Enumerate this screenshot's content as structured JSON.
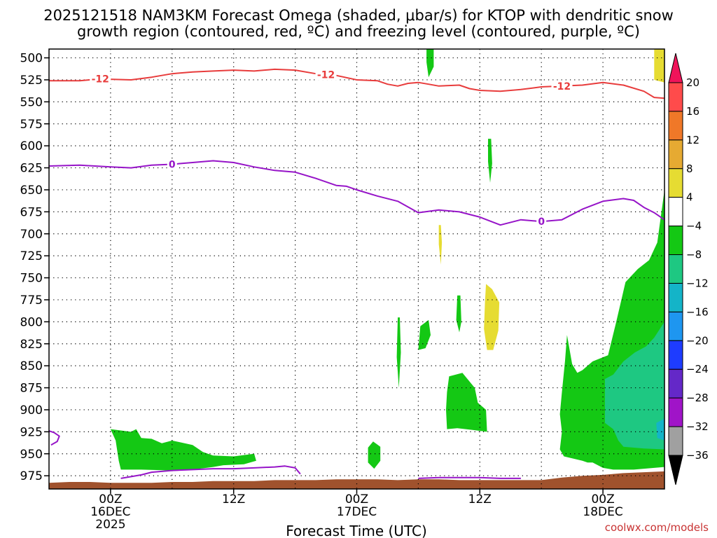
{
  "chart_data": {
    "type": "heatmap",
    "title_line1": "2025121518 NAM3KM Forecast Omega (shaded, μbar/s) for KTOP with dendritic snow",
    "title_line2": "growth region (contoured, red, ºC) and freezing level (contoured, purple, ºC)",
    "xlabel": "Forecast Time (UTC)",
    "credit": "coolwx.com/models",
    "y_axis": {
      "scale": "pressure (reversed)",
      "ylim": [
        990,
        490
      ],
      "ticks": [
        500,
        525,
        550,
        575,
        600,
        625,
        650,
        675,
        700,
        725,
        750,
        775,
        800,
        825,
        850,
        875,
        900,
        925,
        950,
        975
      ]
    },
    "x_axis": {
      "xlim_hours": [
        0,
        60
      ],
      "ticks": [
        {
          "hour": 6,
          "lines": [
            "00Z",
            "16DEC",
            "2025"
          ]
        },
        {
          "hour": 18,
          "lines": [
            "12Z"
          ]
        },
        {
          "hour": 30,
          "lines": [
            "00Z",
            "17DEC"
          ]
        },
        {
          "hour": 42,
          "lines": [
            "12Z"
          ]
        },
        {
          "hour": 54,
          "lines": [
            "00Z",
            "18DEC"
          ]
        }
      ],
      "grid_every_hours": 6
    },
    "grid": true,
    "colorbar": {
      "labels": [
        "20",
        "16",
        "12",
        "8",
        "4",
        "−4",
        "−8",
        "−12",
        "−16",
        "−20",
        "−24",
        "−28",
        "−32",
        "−36"
      ],
      "colors": [
        "#f0145a",
        "#ff4b4b",
        "#f07828",
        "#e6aa32",
        "#e6dc32",
        "#ffffff",
        "#14c814",
        "#1ec882",
        "#14b4c8",
        "#1e96f0",
        "#1e3cff",
        "#6428c8",
        "#a014c8",
        "#a0a0a0"
      ],
      "top_arrow_color": "#f0145a",
      "bottom_arrow_color": "#000000"
    },
    "contours": [
      {
        "color": "#e83c3c",
        "label": "-12",
        "label_at_hours": [
          5,
          27,
          50
        ],
        "points": [
          [
            0,
            526
          ],
          [
            3,
            526
          ],
          [
            5,
            524
          ],
          [
            8,
            525
          ],
          [
            10,
            522
          ],
          [
            12,
            518
          ],
          [
            14,
            516
          ],
          [
            16,
            515
          ],
          [
            18,
            514
          ],
          [
            20,
            515
          ],
          [
            22,
            513
          ],
          [
            24,
            514
          ],
          [
            26,
            518
          ],
          [
            28,
            520
          ],
          [
            30,
            525
          ],
          [
            32,
            526
          ],
          [
            33,
            530
          ],
          [
            34,
            532
          ],
          [
            35,
            529
          ],
          [
            36,
            528
          ],
          [
            37,
            530
          ],
          [
            38,
            532
          ],
          [
            40,
            531
          ],
          [
            41,
            535
          ],
          [
            42,
            537
          ],
          [
            44,
            538
          ],
          [
            46,
            536
          ],
          [
            48,
            533
          ],
          [
            50,
            532
          ],
          [
            52,
            531
          ],
          [
            54,
            528
          ],
          [
            56,
            531
          ],
          [
            58,
            538
          ],
          [
            59,
            545
          ],
          [
            60,
            546
          ]
        ]
      },
      {
        "color": "#9614c8",
        "label": "0",
        "label_at_hours": [
          12,
          48
        ],
        "points": [
          [
            0,
            623
          ],
          [
            3,
            622
          ],
          [
            6,
            624
          ],
          [
            8,
            625
          ],
          [
            10,
            622
          ],
          [
            12,
            621
          ],
          [
            14,
            619
          ],
          [
            16,
            617
          ],
          [
            18,
            619
          ],
          [
            20,
            624
          ],
          [
            22,
            628
          ],
          [
            24,
            630
          ],
          [
            26,
            637
          ],
          [
            28,
            645
          ],
          [
            29,
            646
          ],
          [
            30,
            650
          ],
          [
            32,
            657
          ],
          [
            34,
            663
          ],
          [
            36,
            676
          ],
          [
            38,
            673
          ],
          [
            40,
            675
          ],
          [
            42,
            681
          ],
          [
            44,
            690
          ],
          [
            46,
            684
          ],
          [
            48,
            686
          ],
          [
            50,
            684
          ],
          [
            52,
            672
          ],
          [
            54,
            663
          ],
          [
            56,
            660
          ],
          [
            57,
            662
          ],
          [
            58,
            670
          ],
          [
            59,
            676
          ],
          [
            60,
            684
          ]
        ]
      },
      {
        "color": "#9614c8",
        "label": "",
        "label_at_hours": [],
        "points": [
          [
            0,
            924
          ],
          [
            0.5,
            926
          ],
          [
            1,
            930
          ],
          [
            0.8,
            936
          ],
          [
            0.2,
            940
          ]
        ]
      },
      {
        "color": "#9614c8",
        "label": "",
        "label_at_hours": [],
        "points": [
          [
            7,
            978
          ],
          [
            9,
            974
          ],
          [
            10,
            971
          ],
          [
            12,
            969
          ],
          [
            14,
            968
          ],
          [
            16,
            967
          ],
          [
            18,
            967
          ],
          [
            20,
            966
          ],
          [
            22,
            965
          ],
          [
            23,
            964
          ],
          [
            24,
            966
          ],
          [
            24.5,
            973
          ]
        ]
      },
      {
        "color": "#9614c8",
        "label": "",
        "label_at_hours": [],
        "points": [
          [
            36,
            978
          ],
          [
            38,
            977
          ],
          [
            40,
            977
          ],
          [
            42,
            977
          ],
          [
            44,
            978
          ],
          [
            46,
            978
          ]
        ]
      }
    ],
    "shaded_regions": [
      {
        "color": "#14c814",
        "points": [
          [
            36.8,
            490
          ],
          [
            37.5,
            490
          ],
          [
            37.5,
            510
          ],
          [
            37,
            522
          ],
          [
            36.8,
            505
          ]
        ]
      },
      {
        "color": "#e6dc32",
        "points": [
          [
            59,
            490
          ],
          [
            60,
            490
          ],
          [
            60,
            528
          ],
          [
            59,
            525
          ]
        ]
      },
      {
        "color": "#14c814",
        "points": [
          [
            42.8,
            592
          ],
          [
            43.1,
            592
          ],
          [
            43.2,
            620
          ],
          [
            43.0,
            642
          ],
          [
            42.8,
            618
          ]
        ]
      },
      {
        "color": "#e6dc32",
        "points": [
          [
            38,
            690
          ],
          [
            38.2,
            690
          ],
          [
            38.3,
            710
          ],
          [
            38.2,
            735
          ],
          [
            38.0,
            712
          ]
        ]
      },
      {
        "color": "#e6dc32",
        "points": [
          [
            42.6,
            757
          ],
          [
            43.2,
            763
          ],
          [
            43.9,
            778
          ],
          [
            43.8,
            810
          ],
          [
            43.3,
            832
          ],
          [
            42.7,
            832
          ],
          [
            42.4,
            808
          ],
          [
            42.5,
            778
          ]
        ]
      },
      {
        "color": "#14c814",
        "points": [
          [
            39.8,
            770
          ],
          [
            40.1,
            770
          ],
          [
            40.2,
            800
          ],
          [
            40.0,
            812
          ],
          [
            39.7,
            798
          ]
        ]
      },
      {
        "color": "#14c814",
        "points": [
          [
            34.0,
            795
          ],
          [
            34.2,
            795
          ],
          [
            34.3,
            835
          ],
          [
            34.1,
            875
          ],
          [
            33.9,
            840
          ]
        ]
      },
      {
        "color": "#14c814",
        "points": [
          [
            36.2,
            805
          ],
          [
            37.0,
            798
          ],
          [
            37.2,
            815
          ],
          [
            36.7,
            830
          ],
          [
            36.0,
            832
          ]
        ]
      },
      {
        "color": "#14c814",
        "points": [
          [
            39.0,
            862
          ],
          [
            40.3,
            858
          ],
          [
            41.5,
            875
          ],
          [
            41.8,
            892
          ],
          [
            42.6,
            900
          ],
          [
            42.7,
            925
          ],
          [
            41.3,
            923
          ],
          [
            39.8,
            921
          ],
          [
            38.8,
            922
          ],
          [
            38.7,
            900
          ],
          [
            38.8,
            880
          ]
        ]
      },
      {
        "color": "#14c814",
        "points": [
          [
            31.6,
            936
          ],
          [
            32.3,
            942
          ],
          [
            32.3,
            958
          ],
          [
            31.7,
            967
          ],
          [
            31.1,
            960
          ],
          [
            31.1,
            943
          ]
        ]
      },
      {
        "color": "#14c814",
        "points": [
          [
            6,
            922
          ],
          [
            8,
            925
          ],
          [
            8.5,
            922
          ],
          [
            9,
            932
          ],
          [
            10,
            933
          ],
          [
            11,
            938
          ],
          [
            12,
            935
          ],
          [
            14,
            940
          ],
          [
            15,
            948
          ],
          [
            16,
            952
          ],
          [
            18,
            953
          ],
          [
            20,
            950
          ],
          [
            20.2,
            958
          ],
          [
            19,
            962
          ],
          [
            17,
            963
          ],
          [
            16,
            965
          ],
          [
            14,
            968
          ],
          [
            12,
            969
          ],
          [
            9,
            968
          ],
          [
            7,
            968
          ],
          [
            6.8,
            958
          ],
          [
            6.5,
            935
          ]
        ]
      },
      {
        "color": "#14c814",
        "points": [
          [
            52,
            855
          ],
          [
            53,
            845
          ],
          [
            54.5,
            838
          ],
          [
            55.3,
            800
          ],
          [
            56.2,
            755
          ],
          [
            57.4,
            740
          ],
          [
            58.5,
            730
          ],
          [
            59.3,
            710
          ],
          [
            60,
            650
          ],
          [
            60,
            965
          ],
          [
            57,
            968
          ],
          [
            55,
            968
          ],
          [
            54,
            966
          ],
          [
            53,
            960
          ],
          [
            52.5,
            960
          ],
          [
            52,
            958
          ],
          [
            50.2,
            953
          ],
          [
            49.8,
            945
          ],
          [
            50,
            925
          ],
          [
            49.8,
            905
          ],
          [
            50,
            880
          ],
          [
            50.3,
            845
          ],
          [
            50.5,
            815
          ],
          [
            51,
            848
          ],
          [
            51.5,
            858
          ]
        ]
      },
      {
        "color": "#1ec882",
        "points": [
          [
            54.2,
            865
          ],
          [
            55,
            860
          ],
          [
            56,
            845
          ],
          [
            57.1,
            835
          ],
          [
            58.2,
            828
          ],
          [
            59,
            818
          ],
          [
            60,
            800
          ],
          [
            60,
            945
          ],
          [
            58,
            944
          ],
          [
            57,
            943
          ],
          [
            56,
            942
          ],
          [
            55.5,
            935
          ],
          [
            55,
            922
          ],
          [
            54.2,
            915
          ]
        ]
      },
      {
        "color": "#14b4c8",
        "points": [
          [
            59.2,
            915
          ],
          [
            60,
            910
          ],
          [
            60,
            935
          ],
          [
            59.3,
            932
          ]
        ]
      }
    ],
    "terrain": {
      "color": "#a0522d",
      "surface_pressure": [
        [
          0,
          983
        ],
        [
          2,
          982
        ],
        [
          4,
          982
        ],
        [
          6,
          983
        ],
        [
          8,
          983
        ],
        [
          10,
          983
        ],
        [
          12,
          982
        ],
        [
          14,
          982
        ],
        [
          16,
          981
        ],
        [
          18,
          981
        ],
        [
          20,
          981
        ],
        [
          22,
          980
        ],
        [
          24,
          980
        ],
        [
          26,
          980
        ],
        [
          28,
          979
        ],
        [
          30,
          979
        ],
        [
          32,
          979
        ],
        [
          34,
          980
        ],
        [
          36,
          979
        ],
        [
          38,
          979
        ],
        [
          40,
          980
        ],
        [
          42,
          980
        ],
        [
          44,
          980
        ],
        [
          46,
          980
        ],
        [
          48,
          980
        ],
        [
          50,
          977
        ],
        [
          52,
          975
        ],
        [
          54,
          974
        ],
        [
          56,
          972
        ],
        [
          58,
          971
        ],
        [
          60,
          970
        ]
      ]
    }
  }
}
